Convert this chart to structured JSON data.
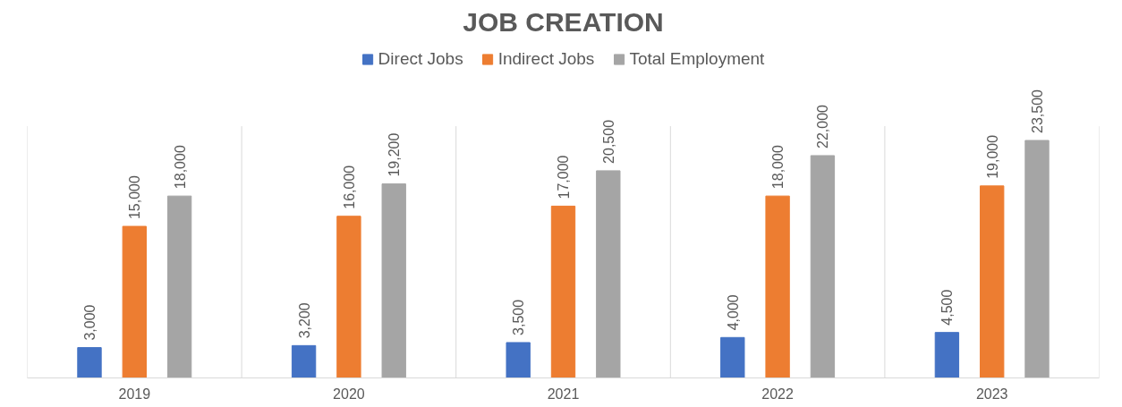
{
  "chart_data": {
    "type": "bar",
    "title": "JOB CREATION",
    "categories": [
      "2019",
      "2020",
      "2021",
      "2022",
      "2023"
    ],
    "series": [
      {
        "name": "Direct Jobs",
        "color": "#4472c4",
        "values": [
          3000,
          3200,
          3500,
          4000,
          4500
        ],
        "value_labels": [
          "3,000",
          "3,200",
          "3,500",
          "4,000",
          "4,500"
        ]
      },
      {
        "name": "Indirect Jobs",
        "color": "#ed7d31",
        "values": [
          15000,
          16000,
          17000,
          18000,
          19000
        ],
        "value_labels": [
          "15,000",
          "16,000",
          "17,000",
          "18,000",
          "19,000"
        ]
      },
      {
        "name": "Total Employment",
        "color": "#a5a5a5",
        "values": [
          18000,
          19200,
          20500,
          22000,
          23500
        ],
        "value_labels": [
          "18,000",
          "19,200",
          "20,500",
          "22,000",
          "23,500"
        ]
      }
    ],
    "legend": "top",
    "grid": "x",
    "tick_labels": "x"
  }
}
